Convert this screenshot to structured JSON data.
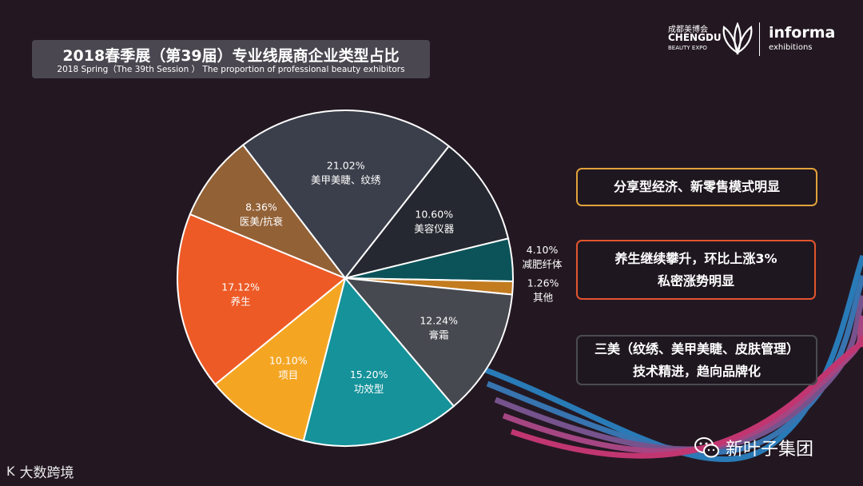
{
  "title": {
    "main": "2018春季展（第39届）专业线展商企业类型占比",
    "sub": "2018 Spring（The 39th Session ） The proportion of professional beauty exhibitors"
  },
  "logos": {
    "chengdu_cn": "成都美博会",
    "chengdu_en": "CHENGDU",
    "chengdu_sub": "BEAUTY EXPO",
    "informa": "informa",
    "informa_sub": "exhibitions"
  },
  "chart_data": {
    "type": "pie",
    "title": "2018春季展（第39届）专业线展商企业类型占比",
    "slices": [
      {
        "label": "美甲美睫、纹绣",
        "value": 21.02,
        "text": "21.02%",
        "color": "#3b3f4b"
      },
      {
        "label": "美容仪器",
        "value": 10.6,
        "text": "10.60%",
        "color": "#252830"
      },
      {
        "label": "减肥纤体",
        "value": 4.1,
        "text": "4.10%",
        "color": "#0b5359"
      },
      {
        "label": "其他",
        "value": 1.26,
        "text": "1.26%",
        "color": "#c37b1f"
      },
      {
        "label": "膏霜",
        "value": 12.24,
        "text": "12.24%",
        "color": "#474950"
      },
      {
        "label": "功效型",
        "value": 15.2,
        "text": "15.20%",
        "color": "#15929a"
      },
      {
        "label": "项目",
        "value": 10.1,
        "text": "10.10%",
        "color": "#f4a623"
      },
      {
        "label": "养生",
        "value": 17.12,
        "text": "17.12%",
        "color": "#ed5a26"
      },
      {
        "label": "医美/抗衰",
        "value": 8.36,
        "text": "8.36%",
        "color": "#936136"
      }
    ]
  },
  "callouts": [
    {
      "lines": [
        "分享型经济、新零售模式明显"
      ],
      "color": "#e2a239"
    },
    {
      "lines": [
        "养生继续攀升，环比上涨3%",
        "私密涨势明显"
      ],
      "color": "#e2552e"
    },
    {
      "lines": [
        "三美（纹绣、美甲美睫、皮肤管理）",
        "技术精进，趋向品牌化"
      ],
      "color": "#4a4b53"
    }
  ],
  "watermarks": {
    "right": "新叶子集团",
    "left_mark": "K",
    "left": "大数跨境"
  }
}
